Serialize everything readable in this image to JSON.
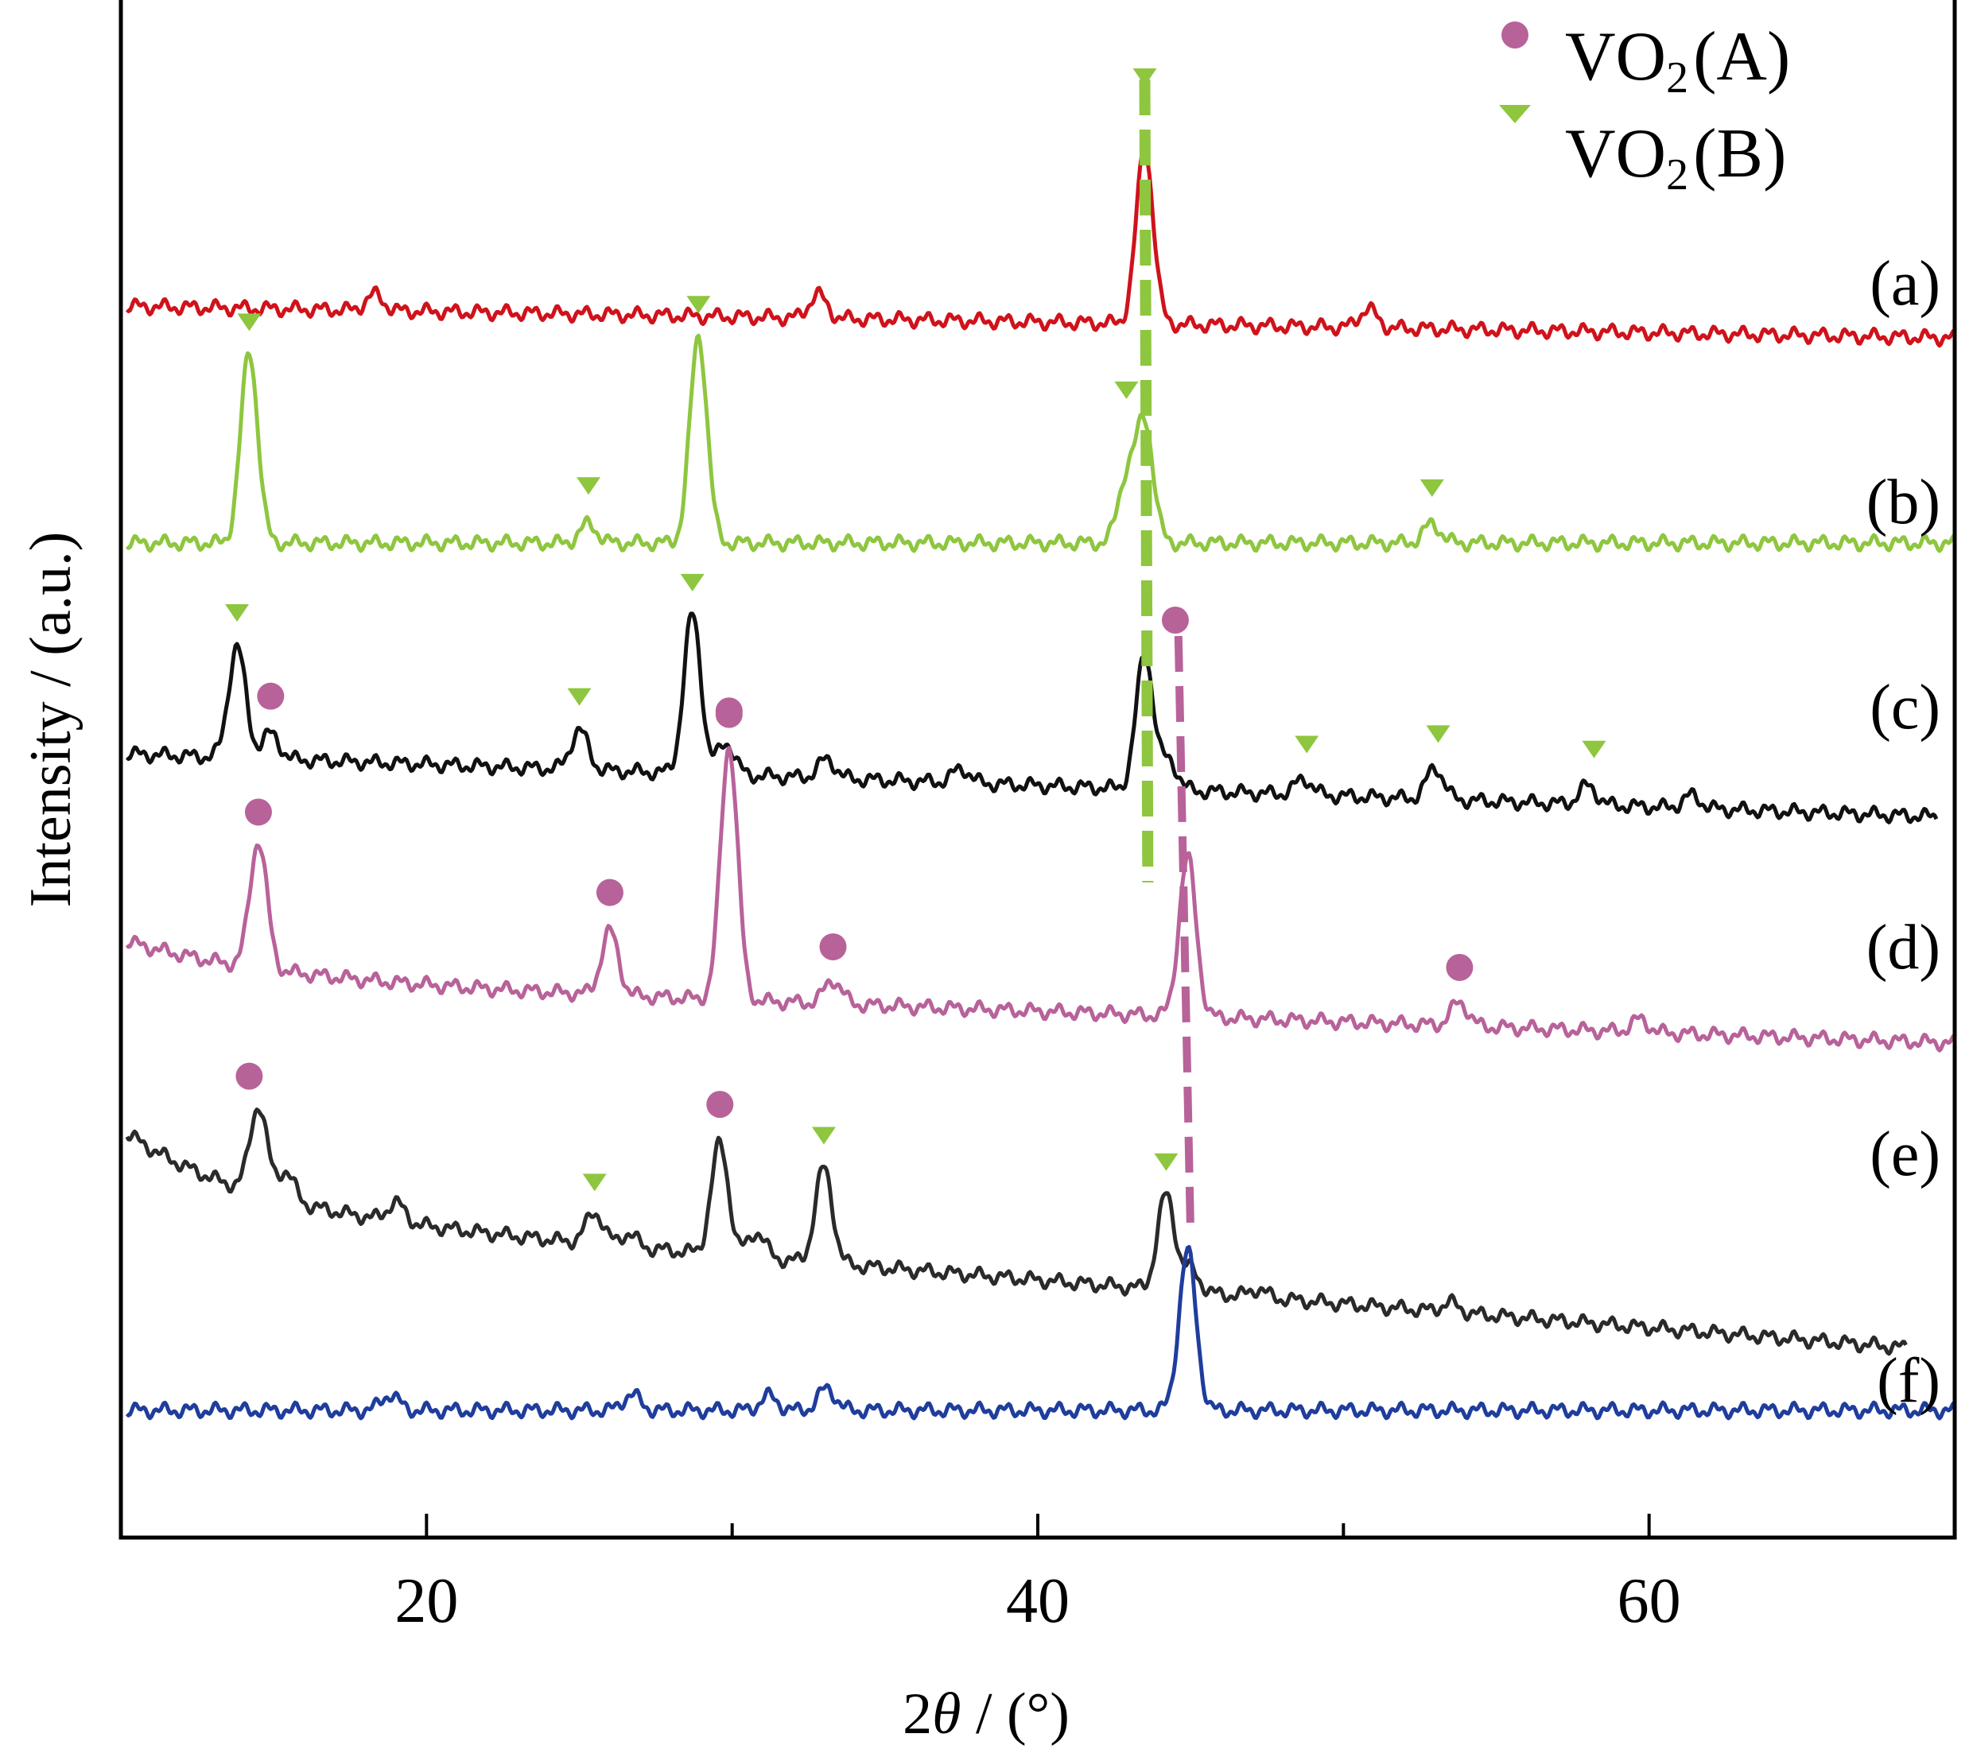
{
  "chart_data": {
    "type": "line",
    "xlabel": "2θ / (°)",
    "xlabel_parts": [
      "2",
      "θ",
      " / (°)"
    ],
    "ylabel": "Intensity / (a.u.)",
    "xlim": [
      10,
      70
    ],
    "xticks": [
      20,
      40,
      60
    ],
    "xtick_labels": [
      "20",
      "40",
      "60"
    ],
    "minor_xticks": [
      30,
      50
    ],
    "grid": false,
    "legend_placement": "top-right",
    "legend": [
      {
        "marker": "circle",
        "color": "#b8629a",
        "prefix": "VO",
        "sub": "2",
        "suffix": "(A)"
      },
      {
        "marker": "triangle",
        "color": "#8ec63f",
        "prefix": "VO",
        "sub": "2",
        "suffix": "(B)"
      }
    ],
    "series": [
      {
        "label": "(a)",
        "color": "#d0121b",
        "peaks": [
          [
            18.3,
            0.01
          ],
          [
            32.8,
            0.015
          ],
          [
            43.5,
            0.11
          ],
          [
            50.8,
            0.012
          ]
        ]
      },
      {
        "label": "(b)",
        "color": "#8ec63f",
        "peaks": [
          [
            14.2,
            0.12
          ],
          [
            25.3,
            0.012
          ],
          [
            28.9,
            0.13
          ],
          [
            42.9,
            0.04
          ],
          [
            43.5,
            0.075
          ],
          [
            52.9,
            0.012
          ]
        ]
      },
      {
        "label": "(c)",
        "color": "#111111",
        "peaks": [
          [
            13.8,
            0.07
          ],
          [
            14.9,
            0.016
          ],
          [
            25.0,
            0.025
          ],
          [
            28.7,
            0.1
          ],
          [
            29.8,
            0.02
          ],
          [
            33.1,
            0.012
          ],
          [
            37.5,
            0.009
          ],
          [
            43.5,
            0.085
          ],
          [
            44.3,
            0.018
          ],
          [
            48.7,
            0.01
          ],
          [
            53.0,
            0.02
          ],
          [
            58.0,
            0.012
          ],
          [
            61.4,
            0.008
          ]
        ]
      },
      {
        "label": "(d)",
        "color": "#b8629a",
        "peaks": [
          [
            14.5,
            0.08
          ],
          [
            26.0,
            0.04
          ],
          [
            29.9,
            0.16
          ],
          [
            33.3,
            0.015
          ],
          [
            44.9,
            0.1
          ],
          [
            53.8,
            0.015
          ],
          [
            59.7,
            0.008
          ]
        ]
      },
      {
        "label": "(e)",
        "color": "#2a2a2a",
        "peaks": [
          [
            14.5,
            0.055
          ],
          [
            15.4,
            0.018
          ],
          [
            19.0,
            0.012
          ],
          [
            25.5,
            0.02
          ],
          [
            26.6,
            0.008
          ],
          [
            29.6,
            0.07
          ],
          [
            30.8,
            0.016
          ],
          [
            33.0,
            0.06
          ],
          [
            44.2,
            0.06
          ],
          [
            45.0,
            0.014
          ],
          [
            47.2,
            0.005
          ],
          [
            53.5,
            0.006
          ]
        ]
      },
      {
        "label": "(f)",
        "color": "#1f3d9c",
        "peaks": [
          [
            18.8,
            0.01
          ],
          [
            26.7,
            0.01
          ],
          [
            31.2,
            0.009
          ],
          [
            33.1,
            0.014
          ],
          [
            44.9,
            0.1
          ]
        ]
      }
    ],
    "markers": {
      "VO2(A)": [
        {
          "series": "(c)",
          "x": [
            14.9,
            29.9
          ]
        },
        {
          "series": "(d)",
          "x": [
            14.5,
            26.0,
            29.9,
            33.3,
            53.8
          ]
        },
        {
          "series": "(e)",
          "x": [
            14.2,
            29.6
          ]
        },
        {
          "series": "(c) top",
          "x": [
            44.5
          ]
        }
      ],
      "VO2(B)": [
        {
          "series": "(a)",
          "x": [
            43.5
          ]
        },
        {
          "series": "(b)",
          "x": [
            14.2,
            25.3,
            28.9,
            42.9,
            52.9
          ]
        },
        {
          "series": "(c)",
          "x": [
            13.8,
            25.0,
            28.7,
            48.8,
            53.1,
            58.2
          ]
        },
        {
          "series": "(e)",
          "x": [
            25.5,
            33.0,
            44.2
          ]
        }
      ]
    },
    "reference_lines": [
      {
        "phase": "VO2(B)",
        "x": [
          43.5,
          43.6
        ]
      },
      {
        "phase": "VO2(A)",
        "x": [
          44.6,
          45.0
        ]
      }
    ]
  }
}
